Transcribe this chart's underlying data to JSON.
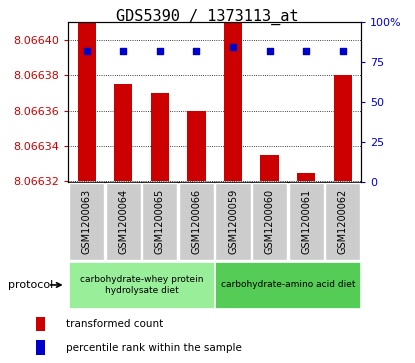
{
  "title": "GDS5390 / 1373113_at",
  "samples": [
    "GSM1200063",
    "GSM1200064",
    "GSM1200065",
    "GSM1200066",
    "GSM1200059",
    "GSM1200060",
    "GSM1200061",
    "GSM1200062"
  ],
  "transformed_counts": [
    8.06642,
    8.066375,
    8.06637,
    8.06636,
    8.066435,
    8.066335,
    8.066325,
    8.06638
  ],
  "percentile_ranks": [
    82,
    82,
    82,
    82,
    84,
    82,
    82,
    82
  ],
  "ylim_left": [
    8.06632,
    8.06641
  ],
  "ylim_right": [
    0,
    100
  ],
  "yticks_left": [
    8.06632,
    8.06634,
    8.06636,
    8.06638,
    8.0664
  ],
  "yticks_right": [
    0,
    25,
    50,
    75,
    100
  ],
  "bar_color": "#cc0000",
  "dot_color": "#0000cc",
  "grid_color": "#000000",
  "protocol_groups": [
    {
      "label": "carbohydrate-whey protein\nhydrolysate diet",
      "start": 0,
      "end": 4,
      "color": "#99ee99"
    },
    {
      "label": "carbohydrate-amino acid diet",
      "start": 4,
      "end": 8,
      "color": "#55cc55"
    }
  ],
  "legend_items": [
    {
      "color": "#cc0000",
      "label": "transformed count"
    },
    {
      "color": "#0000cc",
      "label": "percentile rank within the sample"
    }
  ],
  "protocol_label": "protocol",
  "title_fontsize": 11,
  "tick_fontsize": 8,
  "background_color": "#ffffff",
  "tick_label_color_left": "#cc0000",
  "tick_label_color_right": "#0000cc",
  "sample_box_color": "#cccccc"
}
